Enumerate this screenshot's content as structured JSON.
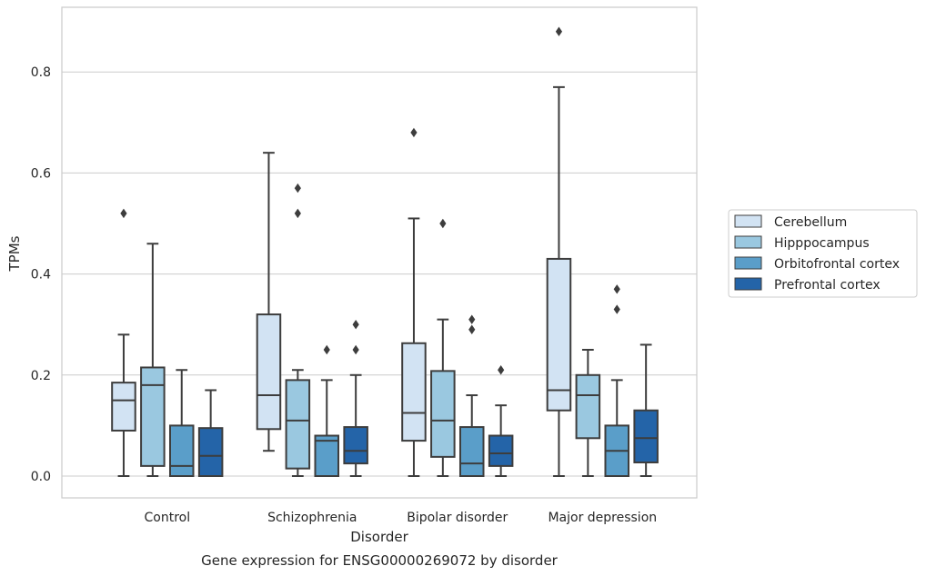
{
  "chart_data": {
    "type": "box",
    "title": "Gene expression for ENSG00000269072 by disorder",
    "xlabel": "Disorder",
    "ylabel": "TPMs",
    "ylim": [
      -0.042,
      0.93
    ],
    "yticks": [
      0.0,
      0.2,
      0.4,
      0.6,
      0.8
    ],
    "ytick_labels": [
      "0.0",
      "0.2",
      "0.4",
      "0.6",
      "0.8"
    ],
    "grid": true,
    "legend_position": "right",
    "categories": [
      "Control",
      "Schizophrenia",
      "Bipolar disorder",
      "Major depression"
    ],
    "series": [
      {
        "name": "Cerebellum",
        "color": "#d2e3f3",
        "boxes": [
          {
            "whisker_low": 0.0,
            "q1": 0.09,
            "median": 0.15,
            "q3": 0.185,
            "whisker_high": 0.28,
            "outliers": [
              0.52
            ]
          },
          {
            "whisker_low": 0.05,
            "q1": 0.093,
            "median": 0.16,
            "q3": 0.32,
            "whisker_high": 0.64,
            "outliers": []
          },
          {
            "whisker_low": 0.0,
            "q1": 0.07,
            "median": 0.125,
            "q3": 0.263,
            "whisker_high": 0.51,
            "outliers": [
              0.68
            ]
          },
          {
            "whisker_low": 0.0,
            "q1": 0.13,
            "median": 0.17,
            "q3": 0.43,
            "whisker_high": 0.77,
            "outliers": [
              0.88
            ]
          }
        ]
      },
      {
        "name": "Hipppocampus",
        "color": "#9ac8e0",
        "boxes": [
          {
            "whisker_low": 0.0,
            "q1": 0.02,
            "median": 0.18,
            "q3": 0.215,
            "whisker_high": 0.46,
            "outliers": []
          },
          {
            "whisker_low": 0.0,
            "q1": 0.015,
            "median": 0.11,
            "q3": 0.19,
            "whisker_high": 0.21,
            "outliers": [
              0.52,
              0.57
            ]
          },
          {
            "whisker_low": 0.0,
            "q1": 0.038,
            "median": 0.11,
            "q3": 0.208,
            "whisker_high": 0.31,
            "outliers": [
              0.5
            ]
          },
          {
            "whisker_low": 0.0,
            "q1": 0.075,
            "median": 0.16,
            "q3": 0.2,
            "whisker_high": 0.25,
            "outliers": []
          }
        ]
      },
      {
        "name": "Orbitofrontal cortex",
        "color": "#5a9ec9",
        "boxes": [
          {
            "whisker_low": 0.0,
            "q1": 0.0,
            "median": 0.02,
            "q3": 0.1,
            "whisker_high": 0.21,
            "outliers": []
          },
          {
            "whisker_low": 0.0,
            "q1": 0.0,
            "median": 0.07,
            "q3": 0.08,
            "whisker_high": 0.19,
            "outliers": [
              0.25
            ]
          },
          {
            "whisker_low": 0.0,
            "q1": 0.0,
            "median": 0.025,
            "q3": 0.097,
            "whisker_high": 0.16,
            "outliers": [
              0.29,
              0.31
            ]
          },
          {
            "whisker_low": 0.0,
            "q1": 0.0,
            "median": 0.05,
            "q3": 0.1,
            "whisker_high": 0.19,
            "outliers": [
              0.33,
              0.37
            ]
          }
        ]
      },
      {
        "name": "Prefrontal cortex",
        "color": "#2464a8",
        "boxes": [
          {
            "whisker_low": 0.0,
            "q1": 0.0,
            "median": 0.04,
            "q3": 0.095,
            "whisker_high": 0.17,
            "outliers": []
          },
          {
            "whisker_low": 0.0,
            "q1": 0.025,
            "median": 0.05,
            "q3": 0.097,
            "whisker_high": 0.2,
            "outliers": [
              0.25,
              0.3
            ]
          },
          {
            "whisker_low": 0.0,
            "q1": 0.02,
            "median": 0.045,
            "q3": 0.08,
            "whisker_high": 0.14,
            "outliers": [
              0.21
            ]
          },
          {
            "whisker_low": 0.0,
            "q1": 0.027,
            "median": 0.075,
            "q3": 0.13,
            "whisker_high": 0.26,
            "outliers": []
          }
        ]
      }
    ]
  }
}
